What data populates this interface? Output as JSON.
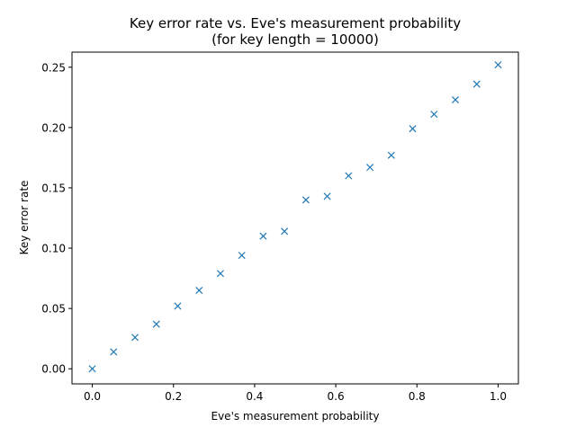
{
  "chart_data": {
    "type": "scatter",
    "title": [
      "Key error rate vs. Eve's measurement probability",
      "(for key length = 10000)"
    ],
    "xlabel": "Eve's measurement probability",
    "ylabel": "Key error rate",
    "xlim": [
      -0.05,
      1.05
    ],
    "ylim": [
      -0.0125,
      0.2625
    ],
    "xticks": [
      0.0,
      0.2,
      0.4,
      0.6,
      0.8,
      1.0
    ],
    "xtick_labels": [
      "0.0",
      "0.2",
      "0.4",
      "0.6",
      "0.8",
      "1.0"
    ],
    "yticks": [
      0.0,
      0.05,
      0.1,
      0.15,
      0.2,
      0.25
    ],
    "ytick_labels": [
      "0.00",
      "0.05",
      "0.10",
      "0.15",
      "0.20",
      "0.25"
    ],
    "grid": false,
    "marker": "x",
    "color": "#1f77b4",
    "series": [
      {
        "x": [
          0.0,
          0.0526,
          0.1053,
          0.1579,
          0.2105,
          0.2632,
          0.3158,
          0.3684,
          0.4211,
          0.4737,
          0.5263,
          0.5789,
          0.6316,
          0.6842,
          0.7368,
          0.7895,
          0.8421,
          0.8947,
          0.9474,
          1.0
        ],
        "y": [
          0.0,
          0.014,
          0.026,
          0.037,
          0.052,
          0.065,
          0.079,
          0.094,
          0.11,
          0.114,
          0.14,
          0.143,
          0.16,
          0.167,
          0.177,
          0.199,
          0.211,
          0.223,
          0.236,
          0.252
        ]
      }
    ]
  }
}
